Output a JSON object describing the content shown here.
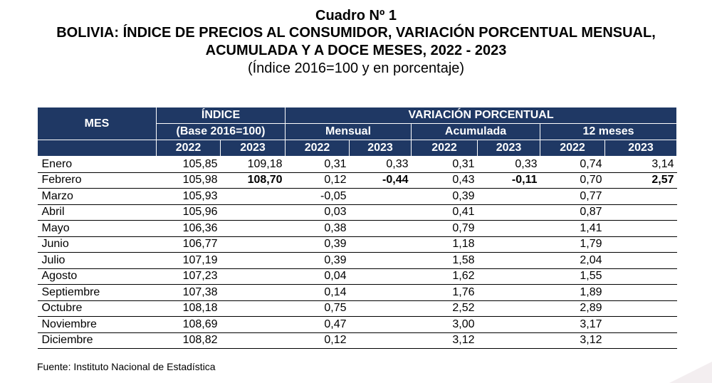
{
  "title": {
    "cuadro": "Cuadro Nº 1",
    "line1": "BOLIVIA: ÍNDICE DE PRECIOS AL CONSUMIDOR, VARIACIÓN PORCENTUAL MENSUAL,",
    "line2": "ACUMULADA Y A DOCE MESES, 2022 - 2023",
    "subtitle": "(Índice 2016=100 y en porcentaje)"
  },
  "table": {
    "headers": {
      "mes": "MES",
      "indice": "ÍNDICE",
      "base": "(Base 2016=100)",
      "variacion": "VARIACIÓN PORCENTUAL",
      "mensual": "Mensual",
      "acumulada": "Acumulada",
      "doce_meses": "12 meses",
      "years": [
        "2022",
        "2023",
        "2022",
        "2023",
        "2022",
        "2023",
        "2022",
        "2023"
      ]
    },
    "rows": [
      [
        "Enero",
        "105,85",
        "109,18",
        "0,31",
        "0,33",
        "0,31",
        "0,33",
        "0,74",
        "3,14"
      ],
      [
        "Febrero",
        "105,98",
        "108,70",
        "0,12",
        "-0,44",
        "0,43",
        "-0,11",
        "0,70",
        "2,57"
      ],
      [
        "Marzo",
        "105,93",
        "",
        "-0,05",
        "",
        "0,39",
        "",
        "0,77",
        ""
      ],
      [
        "Abril",
        "105,96",
        "",
        "0,03",
        "",
        "0,41",
        "",
        "0,87",
        ""
      ],
      [
        "Mayo",
        "106,36",
        "",
        "0,38",
        "",
        "0,79",
        "",
        "1,41",
        ""
      ],
      [
        "Junio",
        "106,77",
        "",
        "0,39",
        "",
        "1,18",
        "",
        "1,79",
        ""
      ],
      [
        "Julio",
        "107,19",
        "",
        "0,39",
        "",
        "1,58",
        "",
        "2,04",
        ""
      ],
      [
        "Agosto",
        "107,23",
        "",
        "0,04",
        "",
        "1,62",
        "",
        "1,55",
        ""
      ],
      [
        "Septiembre",
        "107,38",
        "",
        "0,14",
        "",
        "1,76",
        "",
        "1,89",
        ""
      ],
      [
        "Octubre",
        "108,18",
        "",
        "0,75",
        "",
        "2,52",
        "",
        "2,89",
        ""
      ],
      [
        "Noviembre",
        "108,69",
        "",
        "0,47",
        "",
        "3,00",
        "",
        "3,17",
        ""
      ],
      [
        "Diciembre",
        "108,82",
        "",
        "0,12",
        "",
        "3,12",
        "",
        "3,12",
        ""
      ]
    ]
  },
  "source": "Fuente: Instituto Nacional de Estadística",
  "colors": {
    "header_bg": "#1f3864",
    "header_text": "#ffffff"
  }
}
